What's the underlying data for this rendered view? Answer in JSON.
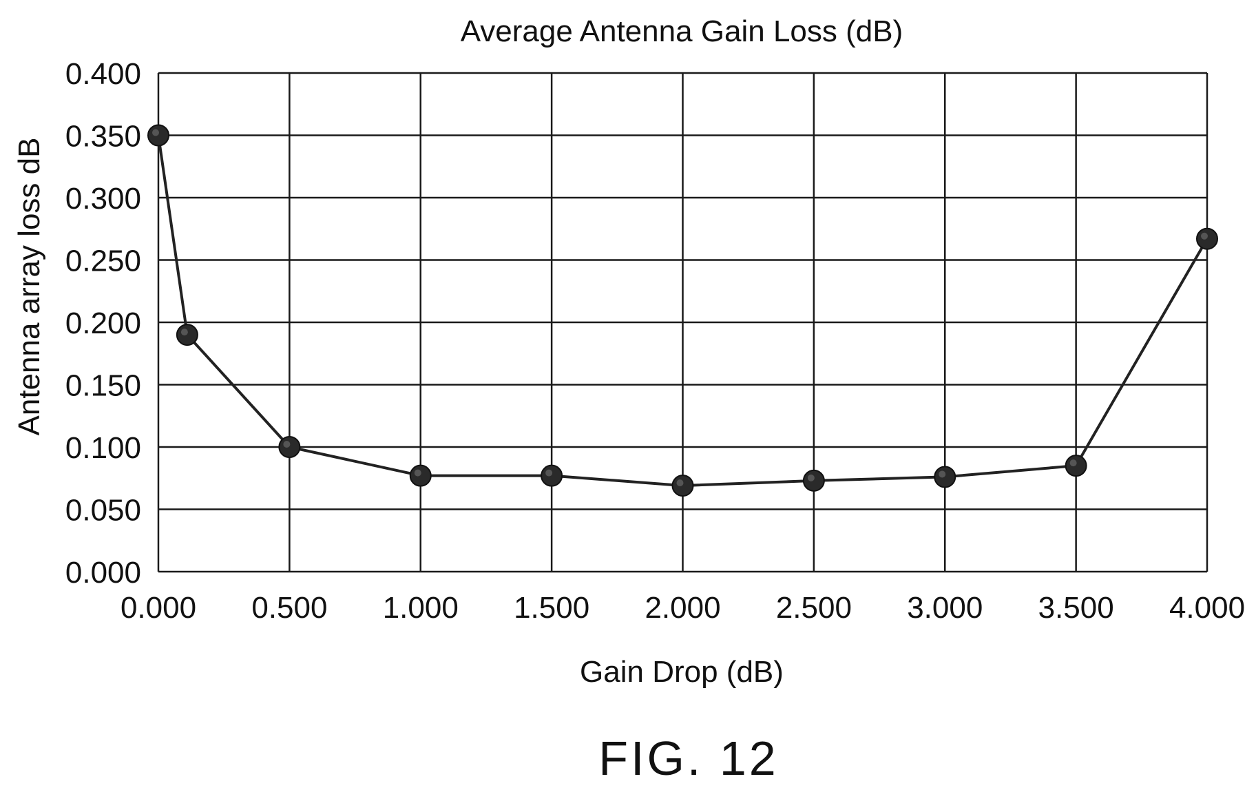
{
  "figure_label": "FIG. 12",
  "chart_data": {
    "type": "line",
    "title": "Average Antenna Gain Loss (dB)",
    "xlabel": "Gain Drop (dB)",
    "ylabel": "Antenna array loss dB",
    "xlim": [
      0,
      4
    ],
    "ylim": [
      0,
      0.4
    ],
    "x_ticks": [
      0,
      0.5,
      1,
      1.5,
      2,
      2.5,
      3,
      3.5,
      4
    ],
    "x_tick_labels": [
      "0.000",
      "0.500",
      "1.000",
      "1.500",
      "2.000",
      "2.500",
      "3.000",
      "3.500",
      "4.000"
    ],
    "y_ticks": [
      0,
      0.05,
      0.1,
      0.15,
      0.2,
      0.25,
      0.3,
      0.35,
      0.4
    ],
    "y_tick_labels": [
      "0.000",
      "0.050",
      "0.100",
      "0.150",
      "0.200",
      "0.250",
      "0.300",
      "0.350",
      "0.400"
    ],
    "grid": true,
    "legend": false,
    "series": [
      {
        "x": [
          0,
          0.11,
          0.5,
          1.0,
          1.5,
          2.0,
          2.5,
          3.0,
          3.5,
          4.0
        ],
        "y": [
          0.35,
          0.19,
          0.1,
          0.077,
          0.077,
          0.069,
          0.073,
          0.076,
          0.085,
          0.267
        ],
        "color": "#222222",
        "marker": "circle"
      }
    ]
  }
}
